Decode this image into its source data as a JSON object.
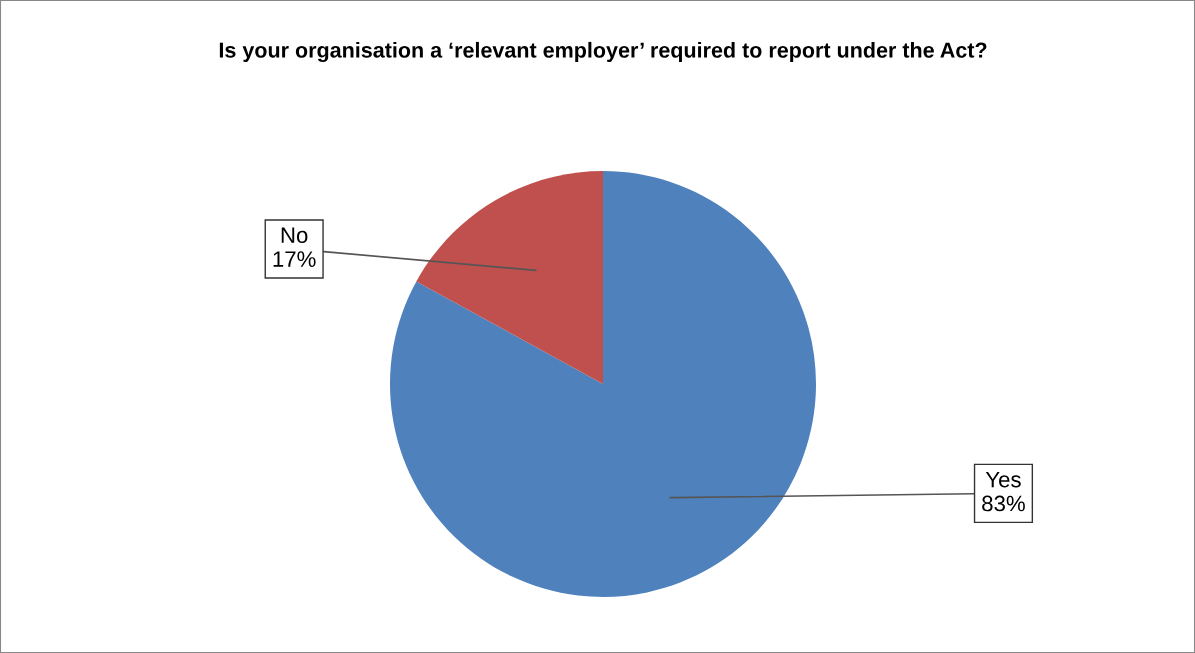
{
  "chart_data": {
    "type": "pie",
    "title": "Is your organisation a ‘relevant employer’ required to report under the Act?",
    "categories": [
      "Yes",
      "No"
    ],
    "values": [
      83,
      17
    ],
    "colors": [
      "#4f81bd",
      "#c0504d"
    ],
    "value_labels": [
      "83%",
      "17%"
    ]
  }
}
